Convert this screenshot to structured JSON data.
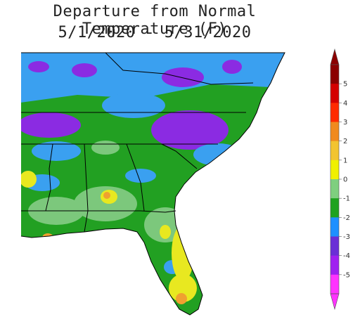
{
  "title": {
    "line1": "Departure from Normal Temperature (F)",
    "line2": "5/1/2020 - 5/31/2020"
  },
  "legend": {
    "ticks": [
      "5",
      "4",
      "3",
      "2",
      "1",
      "0",
      "-1",
      "-2",
      "-3",
      "-4",
      "-5"
    ],
    "colors": [
      "#8b0000",
      "#d40000",
      "#ff2a00",
      "#f08a1e",
      "#f2c430",
      "#f0f000",
      "#7fcf7f",
      "#1fa21f",
      "#1e90ff",
      "#6a2fd6",
      "#a020f0",
      "#ff33ff"
    ]
  },
  "map": {
    "colors": {
      "ocean": "#ffffff",
      "purple": "#8b2be2",
      "blue": "#3aa0f0",
      "dark_green": "#22a022",
      "light_green": "#7cc87c",
      "yellow": "#e8e820",
      "orange": "#f0a030"
    }
  }
}
